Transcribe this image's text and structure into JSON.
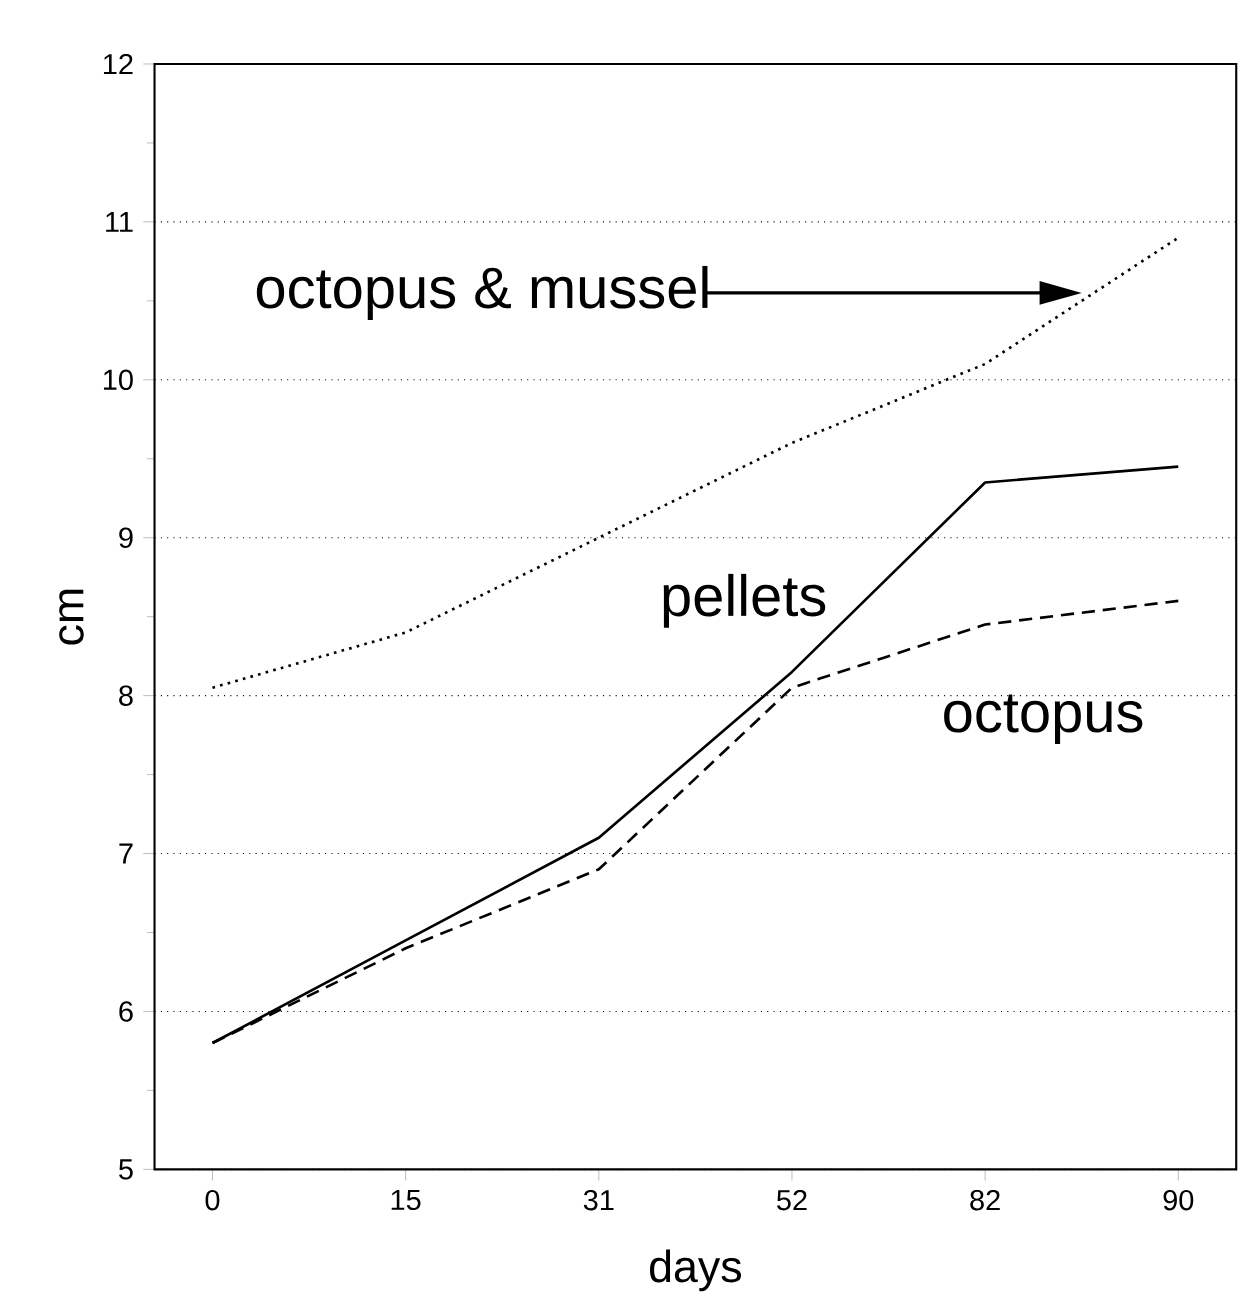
{
  "chart_data": {
    "type": "line",
    "xlabel": "days",
    "ylabel": "cm",
    "categories": [
      "0",
      "15",
      "31",
      "52",
      "82",
      "90"
    ],
    "series": [
      {
        "name": "octopus & mussel",
        "color": "#000000",
        "line_style": "dotted",
        "values": [
          8.05,
          8.4,
          9.0,
          9.6,
          10.1,
          10.9
        ]
      },
      {
        "name": "pellets",
        "color": "#000000",
        "line_style": "solid",
        "values": [
          5.8,
          6.45,
          7.1,
          8.15,
          9.35,
          9.45
        ]
      },
      {
        "name": "octopus",
        "color": "#000000",
        "line_style": "dashed",
        "values": [
          5.8,
          6.4,
          6.9,
          8.05,
          8.45,
          8.6
        ]
      }
    ],
    "ylim": [
      5,
      12
    ],
    "yticks": [
      5,
      6,
      7,
      8,
      9,
      10,
      11,
      12
    ],
    "grid": "y",
    "marker": "none"
  }
}
